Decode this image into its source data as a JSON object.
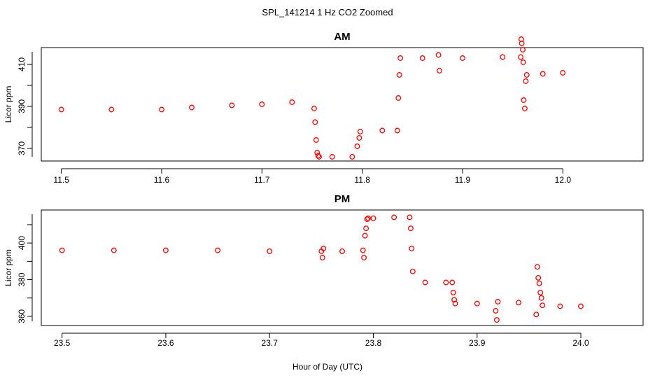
{
  "figure": {
    "suptitle": "SPL_141214  1 Hz CO2 Zoomed",
    "xlabel": "Hour of Day (UTC)"
  },
  "chart_data": [
    {
      "type": "scatter",
      "title": "AM",
      "ylabel": "Licor ppm",
      "xlim": [
        11.48,
        12.08
      ],
      "ylim": [
        364,
        418
      ],
      "xticks": [
        11.5,
        11.6,
        11.7,
        11.8,
        11.9,
        12.0
      ],
      "xtick_labels": [
        "11.5",
        "11.6",
        "11.7",
        "11.8",
        "11.9",
        "12.0"
      ],
      "yticks": [
        370,
        390,
        410
      ],
      "ytick_labels": [
        "370",
        "390",
        "410"
      ],
      "marker_color": "#ff0000",
      "grid": false,
      "series": [
        {
          "x": [
            11.5,
            11.55,
            11.6,
            11.63,
            11.67,
            11.7,
            11.73,
            11.752,
            11.753,
            11.754,
            11.755,
            11.756,
            11.757,
            11.77,
            11.79,
            11.795,
            11.797,
            11.798,
            11.82,
            11.835,
            11.836,
            11.837,
            11.838,
            11.86,
            11.876,
            11.877,
            11.9,
            11.94,
            11.958,
            11.9585,
            11.959,
            11.96,
            11.9605,
            11.961,
            11.962,
            11.963,
            11.964,
            11.98,
            12.0
          ],
          "y": [
            388.5,
            388.5,
            388.5,
            389.5,
            390.5,
            391.0,
            392.0,
            389.0,
            382.5,
            374.0,
            368.0,
            366.5,
            366.0,
            366.0,
            366.0,
            371.0,
            375.0,
            378.0,
            378.5,
            378.5,
            394.0,
            405.0,
            413.0,
            413.0,
            414.5,
            407.0,
            413.0,
            413.5,
            413.5,
            422.0,
            420.0,
            417.0,
            411.0,
            393.0,
            389.0,
            402.0,
            405.0,
            405.5,
            406.0
          ]
        }
      ]
    },
    {
      "type": "scatter",
      "title": "PM",
      "ylabel": "Licor ppm",
      "xlim": [
        23.48,
        24.06
      ],
      "ylim": [
        355,
        418
      ],
      "xticks": [
        23.5,
        23.6,
        23.7,
        23.8,
        23.9,
        24.0
      ],
      "xtick_labels": [
        "23.5",
        "23.6",
        "23.7",
        "23.8",
        "23.9",
        "24.0"
      ],
      "yticks": [
        360,
        380,
        400
      ],
      "ytick_labels": [
        "360",
        "380",
        "400"
      ],
      "marker_color": "#ff0000",
      "grid": false,
      "series": [
        {
          "x": [
            23.5,
            23.55,
            23.6,
            23.65,
            23.7,
            23.75,
            23.751,
            23.752,
            23.77,
            23.79,
            23.791,
            23.792,
            23.793,
            23.794,
            23.795,
            23.8,
            23.82,
            23.835,
            23.836,
            23.837,
            23.838,
            23.85,
            23.87,
            23.876,
            23.877,
            23.878,
            23.879,
            23.9,
            23.918,
            23.919,
            23.92,
            23.94,
            23.957,
            23.958,
            23.959,
            23.96,
            23.961,
            23.962,
            23.963,
            23.98,
            24.0
          ],
          "y": [
            396.0,
            396.0,
            396.0,
            396.0,
            395.5,
            395.5,
            392.0,
            397.0,
            395.5,
            396.0,
            392.0,
            404.0,
            408.0,
            413.0,
            413.5,
            413.5,
            414.0,
            414.0,
            408.0,
            397.0,
            384.5,
            378.5,
            378.5,
            378.5,
            373.0,
            369.0,
            367.0,
            367.0,
            363.0,
            358.0,
            368.0,
            367.5,
            361.0,
            387.0,
            381.0,
            378.0,
            373.0,
            370.0,
            366.0,
            365.5,
            365.5
          ]
        }
      ]
    }
  ]
}
